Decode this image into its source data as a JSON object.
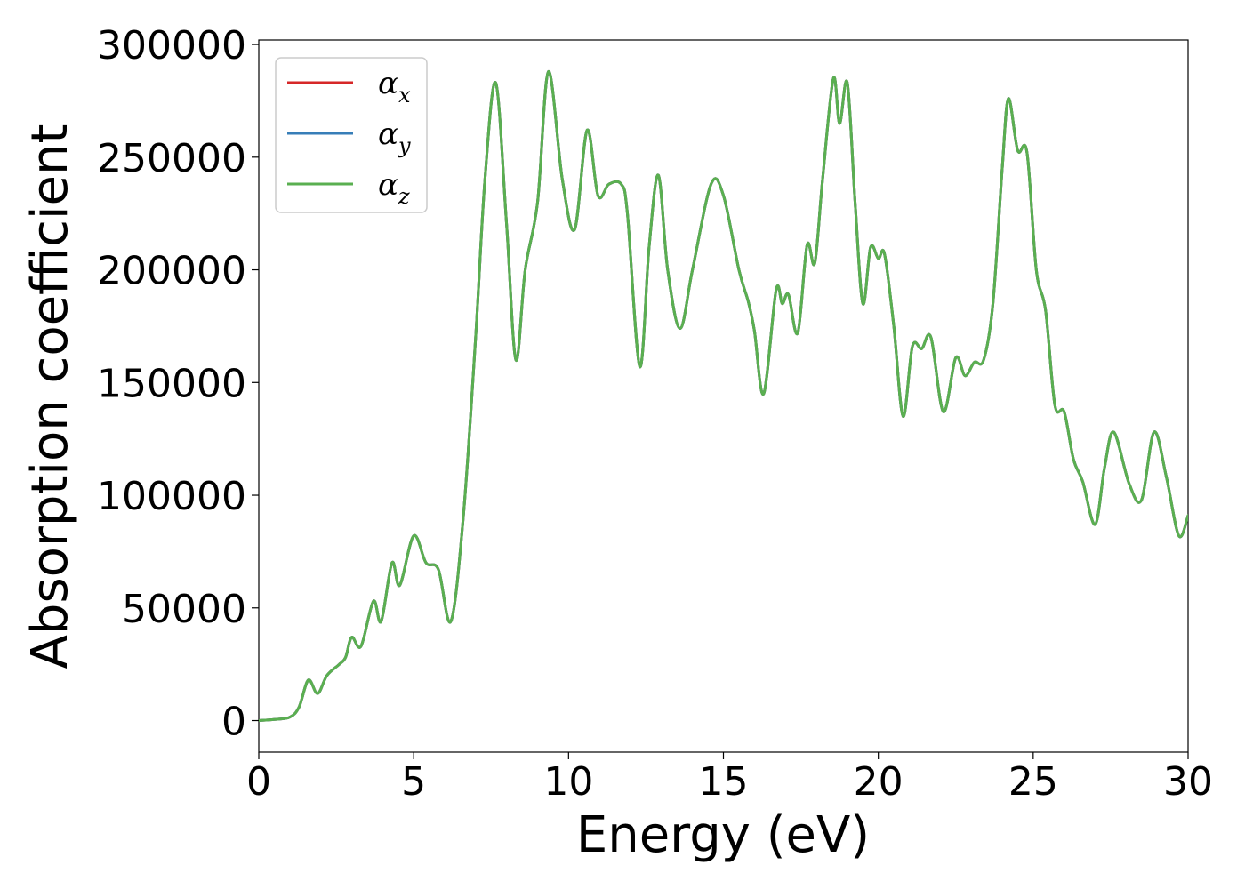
{
  "chart_data": {
    "type": "line",
    "title": "",
    "xlabel": "Energy (eV)",
    "ylabel": "Absorption coefficient",
    "xlim": [
      0,
      30
    ],
    "ylim": [
      -14000,
      302000
    ],
    "x_ticks": [
      0,
      5,
      10,
      15,
      20,
      25,
      30
    ],
    "y_ticks": [
      0,
      50000,
      100000,
      150000,
      200000,
      250000,
      300000
    ],
    "x_tick_labels": [
      "0",
      "5",
      "10",
      "15",
      "20",
      "25",
      "30"
    ],
    "y_tick_labels": [
      "0",
      "50000",
      "100000",
      "150000",
      "200000",
      "250000",
      "300000"
    ],
    "grid": false,
    "legend_position": "top-left",
    "series": [
      {
        "name": "αx",
        "symbol": "α",
        "subscript": "x",
        "color": "#d62728"
      },
      {
        "name": "αy",
        "symbol": "α",
        "subscript": "y",
        "color": "#377eb8"
      },
      {
        "name": "αz",
        "symbol": "α",
        "subscript": "z",
        "color": "#5aaf50"
      }
    ],
    "shared_curve": {
      "x": [
        0,
        0.5,
        1.0,
        1.3,
        1.6,
        1.9,
        2.2,
        2.6,
        2.8,
        3.0,
        3.3,
        3.7,
        3.95,
        4.3,
        4.55,
        5.0,
        5.4,
        5.8,
        6.2,
        6.6,
        7.0,
        7.3,
        7.65,
        8.0,
        8.3,
        8.6,
        9.0,
        9.35,
        9.8,
        10.2,
        10.6,
        10.95,
        11.3,
        11.7,
        11.9,
        12.3,
        12.6,
        12.9,
        13.2,
        13.6,
        14.0,
        14.6,
        15.0,
        15.5,
        15.8,
        16.0,
        16.3,
        16.7,
        16.9,
        17.1,
        17.4,
        17.7,
        17.95,
        18.2,
        18.55,
        18.75,
        19.0,
        19.25,
        19.5,
        19.75,
        20.0,
        20.2,
        20.5,
        20.8,
        21.1,
        21.4,
        21.7,
        22.1,
        22.5,
        22.8,
        23.1,
        23.4,
        23.7,
        24.0,
        24.2,
        24.5,
        24.8,
        25.1,
        25.4,
        25.7,
        26.0,
        26.3,
        26.6,
        27.0,
        27.3,
        27.6,
        28.1,
        28.5,
        28.9,
        29.3,
        29.7,
        30.0
      ],
      "y": [
        0,
        500,
        1500,
        6000,
        18000,
        12000,
        20000,
        25000,
        28000,
        37000,
        33000,
        53000,
        44000,
        70000,
        60000,
        82000,
        70000,
        67000,
        44000,
        90000,
        170000,
        240000,
        283000,
        220000,
        160000,
        200000,
        230000,
        288000,
        240000,
        218000,
        262000,
        233000,
        238000,
        238000,
        225000,
        157000,
        210000,
        242000,
        200000,
        174000,
        200000,
        238000,
        233000,
        200000,
        186000,
        173000,
        145000,
        191000,
        185000,
        189000,
        172000,
        211000,
        203000,
        240000,
        285000,
        265000,
        283000,
        230000,
        185000,
        210000,
        205000,
        207000,
        175000,
        135000,
        166000,
        165000,
        170000,
        137000,
        161000,
        153000,
        159000,
        160000,
        185000,
        245000,
        276000,
        253000,
        252000,
        200000,
        182000,
        140000,
        137000,
        116000,
        106000,
        87000,
        112000,
        128000,
        105000,
        98000,
        128000,
        108000,
        82000,
        91000
      ]
    }
  }
}
